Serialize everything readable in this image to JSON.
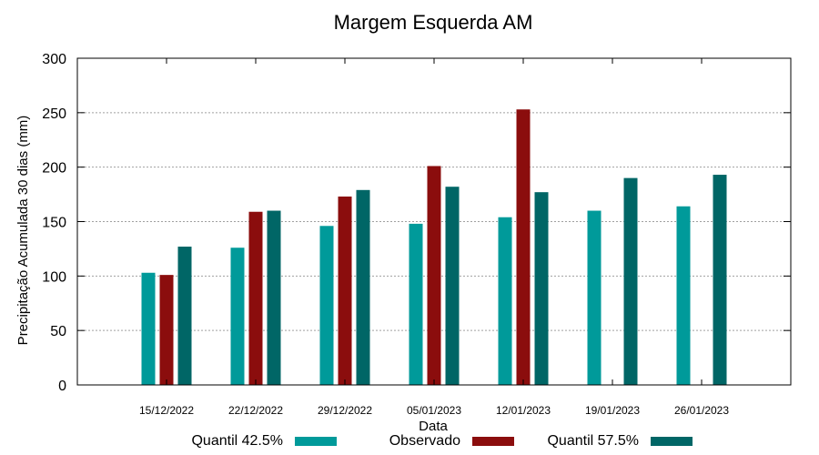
{
  "chart_data": {
    "type": "bar",
    "title": "Margem Esquerda AM",
    "xlabel": "Data",
    "ylabel": "Precipitação Acumulada 30 dias (mm)",
    "ylim": [
      0,
      300
    ],
    "yticks": [
      0,
      50,
      100,
      150,
      200,
      250,
      300
    ],
    "grid": true,
    "legend_position": "bottom",
    "categories": [
      "15/12/2022",
      "22/12/2022",
      "29/12/2022",
      "05/01/2023",
      "12/01/2023",
      "19/01/2023",
      "26/01/2023"
    ],
    "series": [
      {
        "name": "Quantil 42.5%",
        "color": "#009a9a",
        "values": [
          103,
          126,
          146,
          148,
          154,
          160,
          164
        ]
      },
      {
        "name": "Observado",
        "color": "#8b0d0d",
        "values": [
          101,
          159,
          173,
          201,
          253,
          null,
          null
        ]
      },
      {
        "name": "Quantil 57.5%",
        "color": "#006666",
        "values": [
          127,
          160,
          179,
          182,
          177,
          190,
          193
        ]
      }
    ]
  }
}
